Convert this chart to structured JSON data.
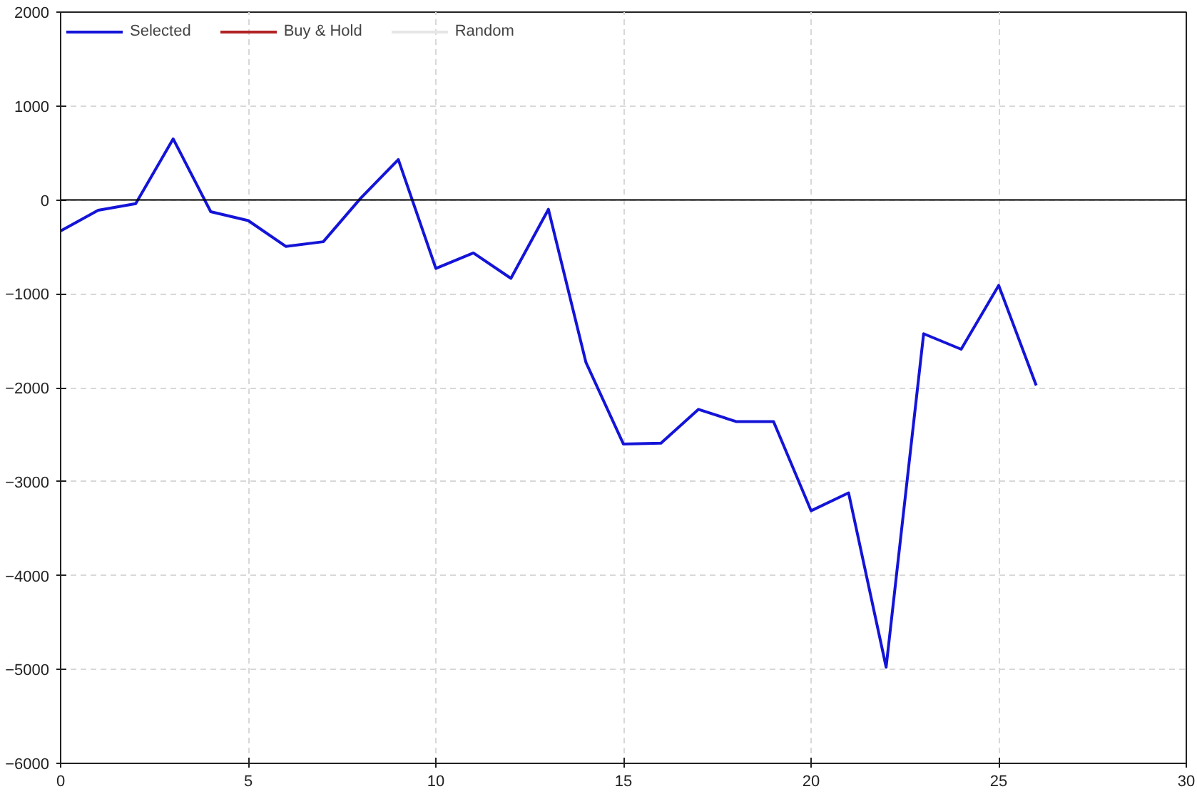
{
  "chart_data": {
    "type": "line",
    "x": [
      0,
      1,
      2,
      3,
      4,
      5,
      6,
      7,
      8,
      9,
      10,
      11,
      12,
      13,
      14,
      15,
      16,
      17,
      18,
      19,
      20,
      21,
      22,
      23,
      24,
      25,
      26
    ],
    "series": [
      {
        "name": "Selected",
        "color": "#1414d8",
        "values": [
          -330,
          -110,
          -40,
          650,
          -125,
          -220,
          -495,
          -445,
          20,
          430,
          -730,
          -565,
          -835,
          -100,
          -1730,
          -2600,
          -2590,
          -2230,
          -2360,
          -2360,
          -3310,
          -3120,
          -4975,
          -1425,
          -1590,
          -910,
          -1975
        ]
      },
      {
        "name": "Buy & Hold",
        "color": "#b22222",
        "values": [
          null,
          null,
          null,
          null,
          null,
          null,
          null,
          null,
          null,
          null,
          null,
          null,
          null,
          null,
          null,
          null,
          null,
          null,
          null,
          null,
          null,
          null,
          null,
          null,
          null,
          null,
          null
        ]
      },
      {
        "name": "Random",
        "color": "#e6e6e6",
        "values": [
          null,
          null,
          null,
          null,
          null,
          null,
          null,
          null,
          null,
          null,
          null,
          null,
          null,
          null,
          null,
          null,
          null,
          null,
          null,
          null,
          null,
          null,
          null,
          null,
          null,
          null,
          null
        ]
      }
    ],
    "xlim": [
      0,
      30
    ],
    "xticks": [
      0,
      5,
      10,
      15,
      20,
      25,
      30
    ],
    "ylim": [
      -6000,
      2000
    ],
    "yticks": [
      -6000,
      -5000,
      -4000,
      -3000,
      -2000,
      -1000,
      0,
      1000,
      2000
    ],
    "ref_lines": [
      {
        "axis": "y",
        "value": 0,
        "color": "#000000"
      }
    ],
    "grid": true,
    "legend": "top left",
    "line_style": "solid",
    "marker": "none"
  }
}
